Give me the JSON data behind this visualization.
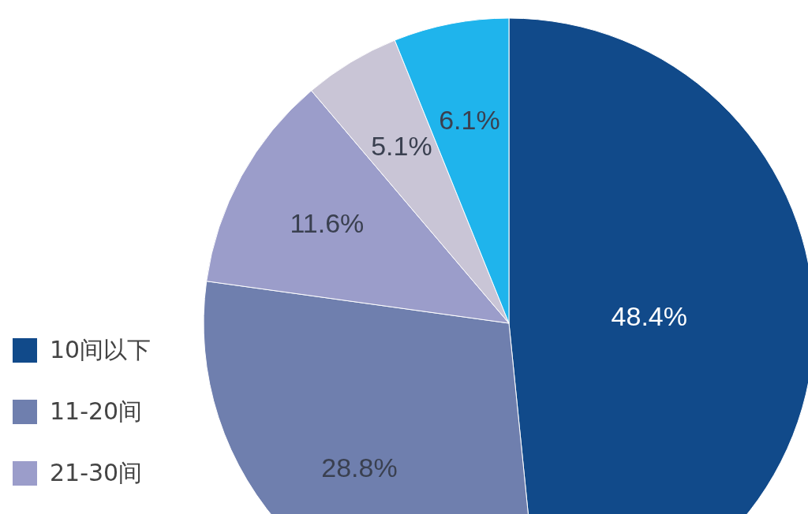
{
  "chart_data": {
    "type": "pie",
    "categories": [
      "10间以下",
      "11-20间",
      "21-30间",
      null,
      null
    ],
    "values": [
      48.4,
      28.8,
      11.6,
      5.1,
      6.1
    ],
    "colors": [
      "#114a8a",
      "#6f7fae",
      "#9b9dca",
      "#c9c5d6",
      "#1fb4ec"
    ],
    "value_labels": [
      "48.4%",
      "28.8%",
      "11.6%",
      "5.1%",
      "6.1%"
    ],
    "legend": "left"
  }
}
